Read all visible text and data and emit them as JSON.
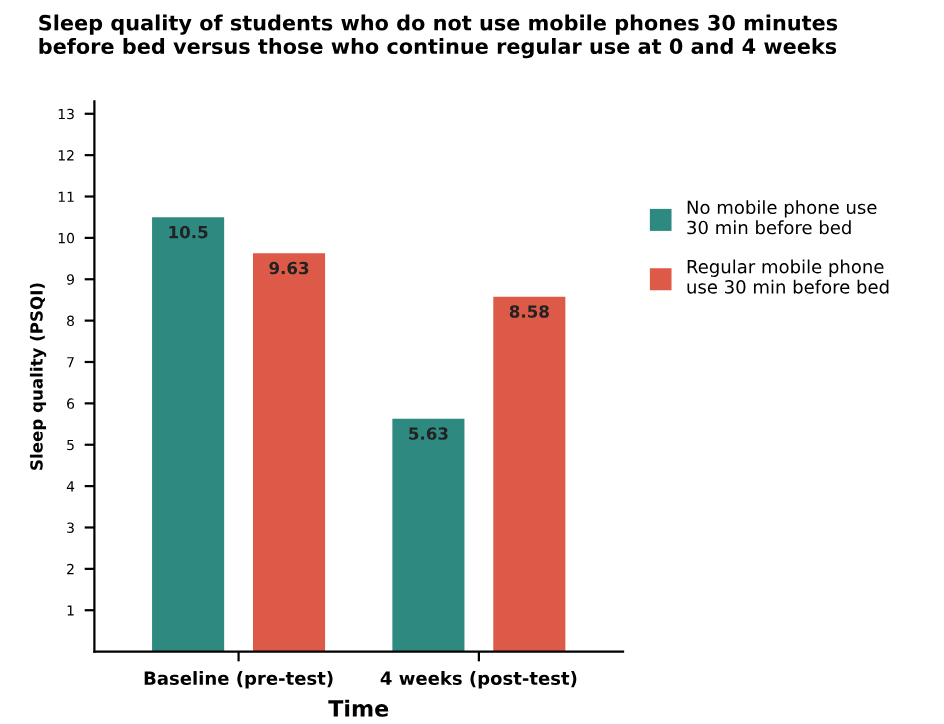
{
  "chart_data": {
    "type": "bar",
    "title": "Sleep quality of students who do not use mobile phones 30 minutes\nbefore bed versus those who continue regular use at 0 and 4 weeks",
    "xlabel": "Time",
    "ylabel": "Sleep quality (PSQI)",
    "categories": [
      "Baseline (pre-test)",
      "4 weeks (post-test)"
    ],
    "series": [
      {
        "name": "No mobile phone use\n30 min before bed",
        "color": "#2e8a80",
        "values": [
          10.5,
          5.63
        ]
      },
      {
        "name": "Regular mobile phone\nuse 30 min before bed",
        "color": "#de5a48",
        "values": [
          9.63,
          8.58
        ]
      }
    ],
    "ylim": [
      0,
      13.3
    ],
    "yticks": [
      1,
      2,
      3,
      4,
      5,
      6,
      7,
      8,
      9,
      10,
      11,
      12,
      13
    ],
    "data_labels": true,
    "legend": "right",
    "grid": false
  }
}
